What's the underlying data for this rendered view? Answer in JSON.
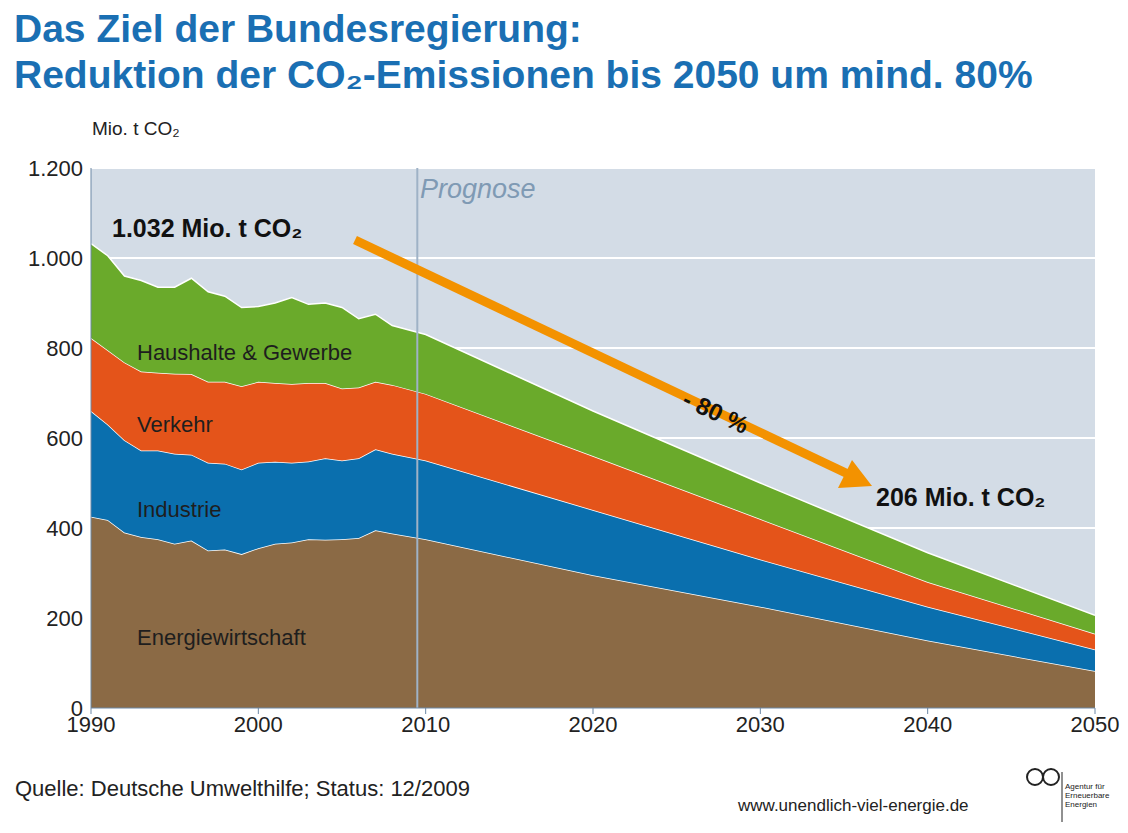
{
  "chart_data": {
    "type": "area",
    "stacked": true,
    "title": "Das Ziel der Bundesregierung: Reduktion der CO₂-Emissionen bis 2050 um mind. 80%",
    "y_label": "Mio. t CO₂",
    "annotations": {
      "start": "1.032 Mio. t CO₂",
      "end": "206 Mio. t CO₂",
      "reduction": "- 80 %",
      "forecast": "Prognose",
      "source": "Quelle: Deutsche Umwelthilfe; Status: 12/2009",
      "url": "www.unendlich-viel-energie.de",
      "logo": "Agentur für Erneuerbare Energien"
    },
    "forecast_start": 2009.5,
    "x": [
      1990,
      1991,
      1992,
      1993,
      1994,
      1995,
      1996,
      1997,
      1998,
      1999,
      2000,
      2001,
      2002,
      2003,
      2004,
      2005,
      2006,
      2007,
      2008,
      2010,
      2020,
      2030,
      2040,
      2050
    ],
    "series": [
      {
        "name": "Energiewirtschaft",
        "color": "#8b6a45",
        "values": [
          425,
          418,
          390,
          380,
          375,
          365,
          372,
          350,
          352,
          342,
          355,
          365,
          368,
          375,
          374,
          375,
          378,
          395,
          388,
          375,
          295,
          225,
          150,
          82
        ]
      },
      {
        "name": "Industrie",
        "color": "#0a6fae",
        "values": [
          235,
          212,
          205,
          192,
          197,
          200,
          191,
          195,
          191,
          188,
          190,
          182,
          177,
          173,
          181,
          175,
          177,
          180,
          177,
          175,
          145,
          105,
          75,
          48
        ]
      },
      {
        "name": "Verkehr",
        "color": "#e4541a",
        "values": [
          162,
          165,
          173,
          176,
          173,
          178,
          179,
          180,
          182,
          185,
          180,
          175,
          175,
          174,
          167,
          160,
          157,
          150,
          153,
          148,
          120,
          90,
          55,
          35
        ]
      },
      {
        "name": "Haushalte & Gewerbe",
        "color": "#6aaa2b",
        "values": [
          210,
          210,
          192,
          202,
          190,
          192,
          213,
          200,
          190,
          175,
          167,
          178,
          192,
          175,
          178,
          180,
          153,
          150,
          132,
          132,
          100,
          80,
          65,
          41
        ]
      }
    ],
    "xlim": [
      1990,
      2050
    ],
    "xticks": [
      1990,
      2000,
      2010,
      2020,
      2030,
      2040,
      2050
    ],
    "ylim": [
      0,
      1200
    ],
    "yticks": [
      0,
      200,
      400,
      600,
      800,
      {
        "value": 1000,
        "label": "1.000"
      },
      {
        "value": 1200,
        "label": "1.200"
      }
    ],
    "grid": true
  }
}
